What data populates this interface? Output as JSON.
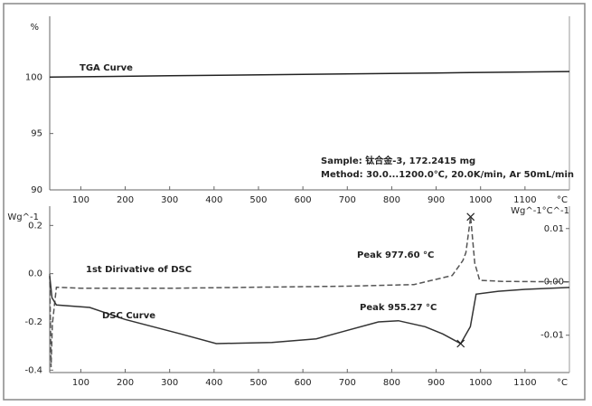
{
  "chart_data": [
    {
      "type": "line",
      "ylabel": "%",
      "xlabel": "°C",
      "xlim": [
        30,
        1200
      ],
      "xticks": [
        100,
        200,
        300,
        400,
        500,
        600,
        700,
        800,
        900,
        1000,
        1100
      ],
      "ylim": [
        90,
        105.4
      ],
      "yticks": [
        90,
        95,
        100
      ],
      "series": [
        {
          "name": "TGA Curve",
          "color": "#222222",
          "linestyle": "solid",
          "x": [
            30,
            300,
            600,
            900,
            1200
          ],
          "values": [
            100,
            100.12,
            100.25,
            100.37,
            100.5
          ]
        }
      ],
      "notes": [
        "Sample: 钛合金-3, 172.2415 mg",
        "Method: 30.0...1200.0℃, 20.0K/min, Ar 50mL/min"
      ]
    },
    {
      "type": "line",
      "ylabel": "Wg^-1",
      "y2label": "Wg^-1°C^-1",
      "xlabel": "°C",
      "xlim": [
        30,
        1200
      ],
      "xticks": [
        100,
        200,
        300,
        400,
        500,
        600,
        700,
        800,
        900,
        1000,
        1100
      ],
      "ylim": [
        -0.41,
        0.28
      ],
      "yticks": [
        -0.4,
        -0.2,
        {
          "value": 0,
          "label": "0.0"
        },
        0.2
      ],
      "y2lim": [
        -0.017,
        0.0142
      ],
      "y2ticks": [
        -0.01,
        {
          "value": 0,
          "label": "0.00"
        },
        0.01
      ],
      "series": [
        {
          "name": "1st Dirivative of DSC",
          "color": "#555555",
          "linestyle": "dashed",
          "axis": "y2",
          "x": [
            30,
            33,
            36,
            45,
            100,
            300,
            500,
            700,
            850,
            936,
            960,
            967,
            977.6,
            987,
            998,
            1050,
            1200
          ],
          "values": [
            0.0015,
            -0.016,
            -0.008,
            -0.001,
            -0.0012,
            -0.0012,
            -0.001,
            -0.0008,
            -0.0005,
            0.0012,
            0.004,
            0.0055,
            0.0122,
            0.0035,
            0.0003,
            0.0001,
            0
          ]
        },
        {
          "name": "DSC Curve",
          "color": "#333333",
          "linestyle": "solid",
          "x": [
            30,
            35,
            45,
            120,
            200,
            325,
            405,
            530,
            630,
            690,
            770,
            815,
            875,
            915,
            955.27,
            977,
            990,
            1040,
            1100,
            1200
          ],
          "values": [
            -0.01,
            -0.1,
            -0.13,
            -0.14,
            -0.19,
            -0.25,
            -0.29,
            -0.285,
            -0.27,
            -0.24,
            -0.2,
            -0.195,
            -0.22,
            -0.25,
            -0.29,
            -0.22,
            -0.085,
            -0.073,
            -0.065,
            -0.057
          ]
        }
      ],
      "annotations": [
        {
          "text": "Peak  977.60 °C",
          "x": 977.6,
          "y": 0.0122,
          "axis": "y2"
        },
        {
          "text": "Peak  955.27 °C",
          "x": 955.27,
          "y": -0.29,
          "axis": "y"
        }
      ]
    }
  ]
}
